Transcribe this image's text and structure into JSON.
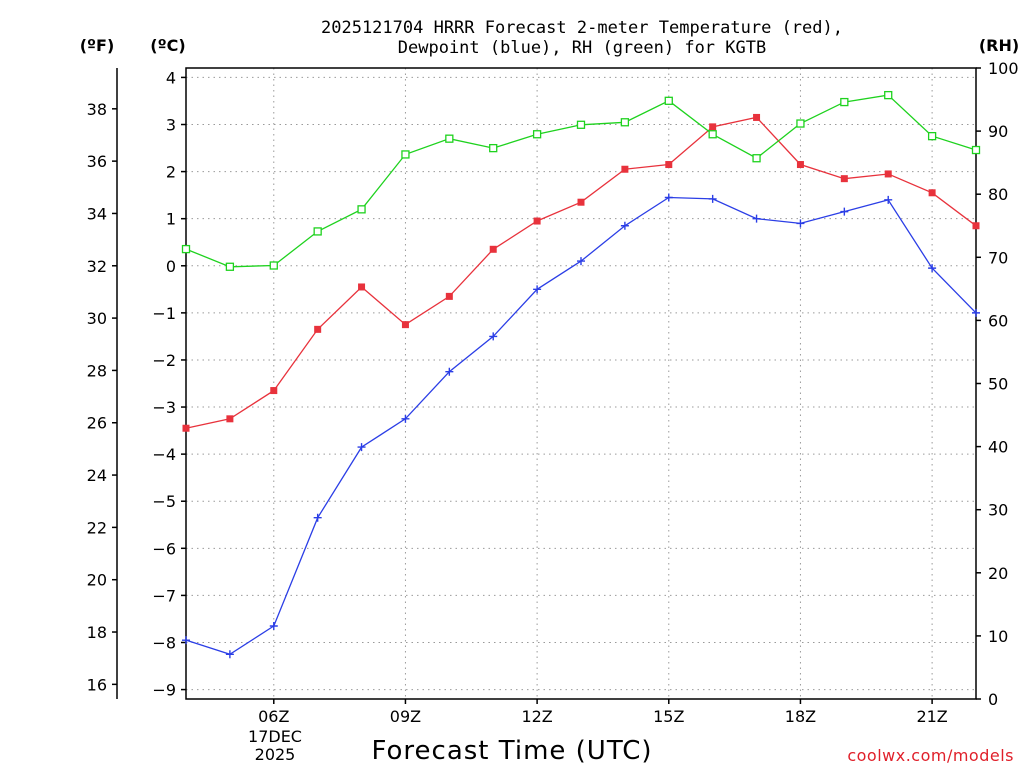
{
  "title_line1": "2025121704 HRRR Forecast 2-meter Temperature (red),",
  "title_line2": "Dewpoint (blue), RH (green) for KGTB",
  "units": {
    "fahrenheit": "(ºF)",
    "celsius": "(ºC)",
    "rh": "(RH)"
  },
  "x_axis": {
    "label": "Forecast Time (UTC)",
    "date_day": "17DEC",
    "date_year": "2025"
  },
  "credit": "coolwx.com/models",
  "colors": {
    "temperature": "#e8323c",
    "dewpoint": "#2b3ee6",
    "rh": "#1ed21e"
  },
  "chart_data": {
    "type": "line",
    "title": "2025121704 HRRR Forecast 2-meter Temperature (red), Dewpoint (blue), RH (green) for KGTB",
    "xlabel": "Forecast Time (UTC)",
    "x_hours": [
      4,
      5,
      6,
      7,
      8,
      9,
      10,
      11,
      12,
      13,
      14,
      15,
      16,
      17,
      18,
      19,
      20,
      21,
      22
    ],
    "x_range": [
      4,
      22
    ],
    "x_ticks": [
      {
        "hour": 6,
        "label": "06Z"
      },
      {
        "hour": 9,
        "label": "09Z"
      },
      {
        "hour": 12,
        "label": "12Z"
      },
      {
        "hour": 15,
        "label": "15Z"
      },
      {
        "hour": 18,
        "label": "18Z"
      },
      {
        "hour": 21,
        "label": "21Z"
      }
    ],
    "y_left_celsius": {
      "label": "(ºC)",
      "range": [
        -9.2,
        4.2
      ],
      "ticks": [
        -9,
        -8,
        -7,
        -6,
        -5,
        -4,
        -3,
        -2,
        -1,
        0,
        1,
        2,
        3,
        4
      ]
    },
    "y_left_fahrenheit": {
      "label": "(ºF)",
      "ticks": [
        16,
        18,
        20,
        22,
        24,
        26,
        28,
        30,
        32,
        34,
        36,
        38
      ]
    },
    "y_right_rh": {
      "label": "(RH)",
      "range": [
        0,
        100
      ],
      "ticks": [
        0,
        10,
        20,
        30,
        40,
        50,
        60,
        70,
        80,
        90,
        100
      ]
    },
    "grid": true,
    "series": [
      {
        "name": "Temperature",
        "axis": "celsius",
        "color": "#e8323c",
        "marker": "filled-square",
        "values": [
          -3.45,
          -3.25,
          -2.65,
          -1.35,
          -0.45,
          -1.25,
          -0.65,
          0.35,
          0.95,
          1.35,
          2.05,
          2.15,
          2.95,
          3.15,
          2.15,
          1.85,
          1.95,
          1.55,
          0.85
        ]
      },
      {
        "name": "Dewpoint",
        "axis": "celsius",
        "color": "#2b3ee6",
        "marker": "plus",
        "values": [
          -7.95,
          -8.25,
          -7.65,
          -5.35,
          -3.85,
          -3.25,
          -2.25,
          -1.5,
          -0.5,
          0.1,
          0.85,
          1.45,
          1.42,
          1.0,
          0.9,
          1.15,
          1.4,
          -0.05,
          -1.0
        ]
      },
      {
        "name": "RH",
        "axis": "rh",
        "color": "#1ed21e",
        "marker": "open-square",
        "values": [
          71.3,
          68.5,
          68.7,
          74.1,
          77.6,
          86.3,
          88.8,
          87.3,
          89.5,
          91.0,
          91.4,
          94.8,
          89.5,
          85.7,
          91.2,
          94.6,
          95.7,
          89.2,
          87.0
        ]
      }
    ]
  }
}
